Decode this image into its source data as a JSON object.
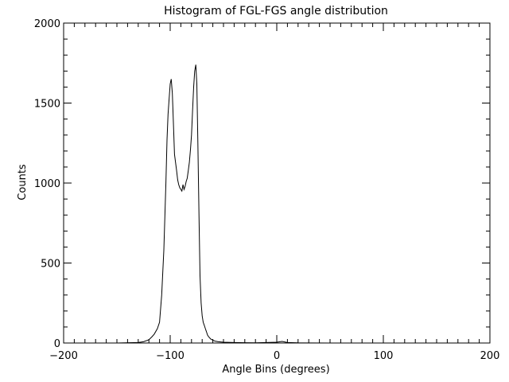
{
  "chart_data": {
    "type": "line",
    "title": "Histogram of FGL-FGS angle distribution",
    "xlabel": "Angle Bins (degrees)",
    "ylabel": "Counts",
    "xlim": [
      -200,
      200
    ],
    "ylim": [
      0,
      2000
    ],
    "xticks": [
      -200,
      -100,
      0,
      100,
      200
    ],
    "yticks": [
      0,
      500,
      1000,
      1500,
      2000
    ],
    "x_minor_step": 10,
    "y_minor_step": 100,
    "grid": false,
    "legend": "none",
    "line_color": "#000000",
    "series": [
      {
        "x": [
          -200,
          -150,
          -130,
          -125,
          -120,
          -117,
          -115,
          -112,
          -110,
          -108,
          -106,
          -104,
          -103,
          -102,
          -101,
          -100,
          -99,
          -98,
          -97,
          -96,
          -95,
          -94,
          -93,
          -92,
          -91,
          -90,
          -89,
          -88,
          -87,
          -86,
          -85,
          -84,
          -83,
          -82,
          -81,
          -80,
          -79,
          -78,
          -77,
          -76,
          -75,
          -74,
          -73,
          -72,
          -71,
          -70,
          -69,
          -68,
          -67,
          -66,
          -65,
          -64,
          -62,
          -60,
          -58,
          -55,
          -50,
          -40,
          -30,
          -20,
          -10,
          0,
          5,
          10,
          20,
          50,
          100,
          150,
          200
        ],
        "y": [
          0,
          0,
          3,
          8,
          20,
          40,
          55,
          90,
          130,
          300,
          580,
          1000,
          1270,
          1430,
          1530,
          1620,
          1650,
          1560,
          1380,
          1180,
          1130,
          1080,
          1020,
          990,
          970,
          960,
          950,
          990,
          960,
          980,
          1010,
          1030,
          1080,
          1130,
          1210,
          1300,
          1450,
          1600,
          1700,
          1740,
          1620,
          1250,
          800,
          420,
          250,
          170,
          130,
          110,
          90,
          70,
          50,
          40,
          25,
          18,
          12,
          8,
          5,
          3,
          2,
          1,
          3,
          5,
          10,
          3,
          1,
          0,
          0,
          0,
          0
        ]
      }
    ]
  }
}
